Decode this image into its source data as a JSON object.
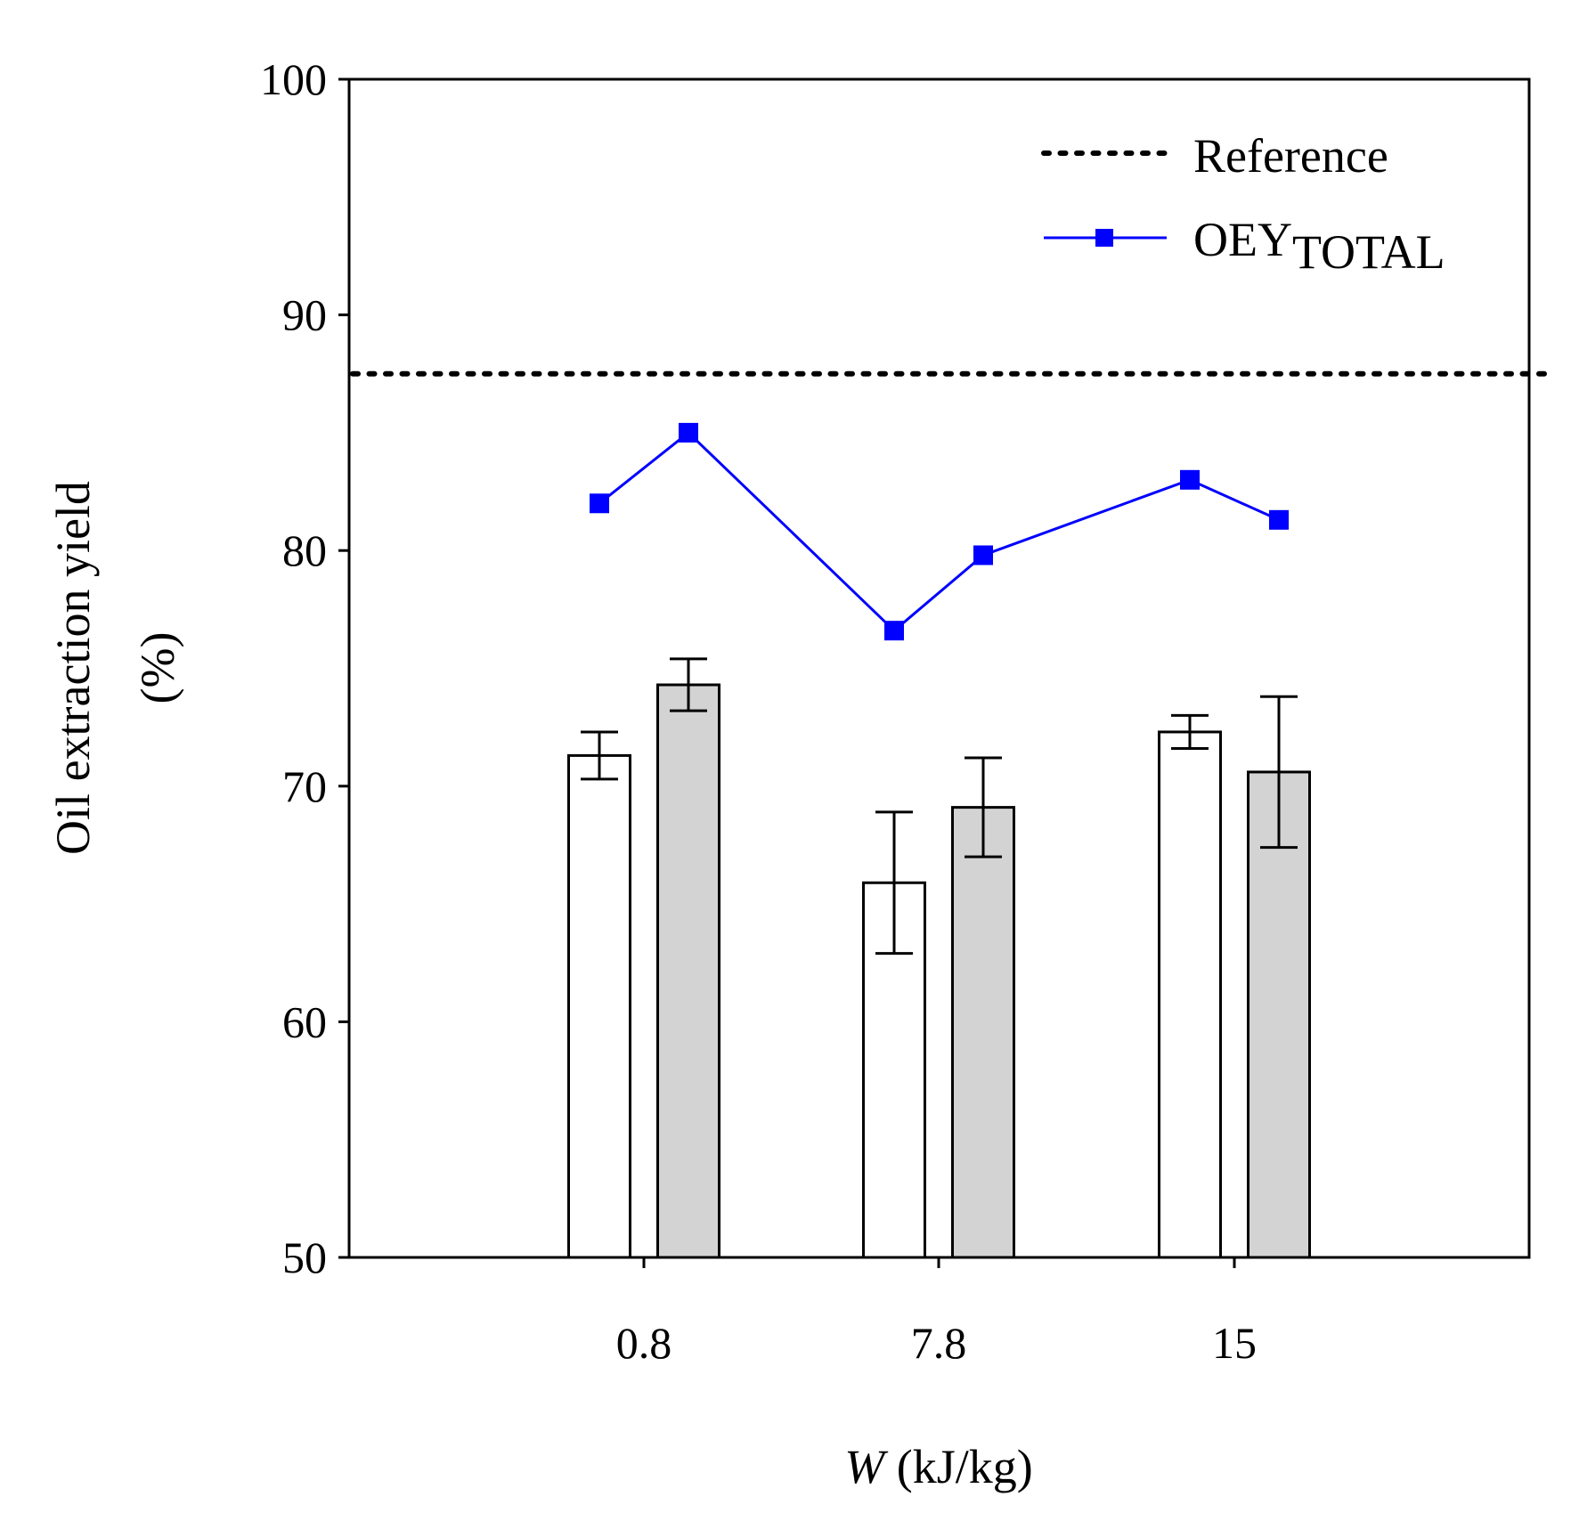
{
  "chart_data": {
    "type": "bar",
    "title": "",
    "xlabel_var": "W",
    "xlabel_unit": " (kJ/kg)",
    "ylabel_line1": "Oil extraction yield",
    "ylabel_line2": "(%)",
    "ylim": [
      50,
      100
    ],
    "yticks": [
      "50",
      "60",
      "70",
      "80",
      "90",
      "100"
    ],
    "ytick_values": [
      50,
      60,
      70,
      80,
      90,
      100
    ],
    "categories": [
      "0.8",
      "7.8",
      "15"
    ],
    "series": [
      {
        "kind": "bar",
        "fill": "#ffffff",
        "values": [
          71.3,
          65.9,
          72.3
        ],
        "errors": [
          1.0,
          3.0,
          0.7
        ]
      },
      {
        "kind": "bar",
        "fill": "#d3d3d3",
        "values": [
          74.3,
          69.1,
          70.6
        ],
        "errors": [
          1.1,
          2.1,
          3.2
        ]
      }
    ],
    "oey_total": {
      "name_main": "OEY",
      "name_sub": "TOTAL",
      "color": "#0000ff",
      "values": [
        [
          82.0,
          85.0
        ],
        [
          76.6,
          79.8
        ],
        [
          83.0,
          81.3
        ]
      ]
    },
    "reference": {
      "name": "Reference",
      "value": 87.5,
      "color": "#000000"
    },
    "legend_position": "top-right",
    "grid": false
  }
}
